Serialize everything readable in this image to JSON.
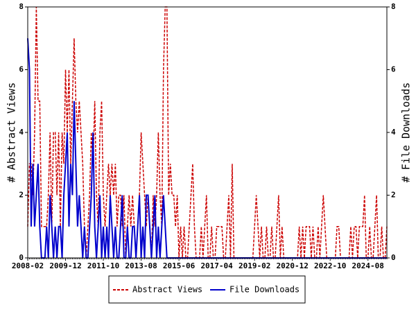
{
  "chart_data": {
    "type": "line",
    "y_label": "# Abstract Views",
    "y2_label": "# File Downloads",
    "categories": [
      "2008-02",
      null,
      null,
      null,
      null,
      null,
      null,
      null,
      null,
      null,
      null,
      null,
      null,
      null,
      null,
      null,
      null,
      null,
      null,
      null,
      null,
      null,
      "2009-12",
      null,
      null,
      null,
      null,
      null,
      null,
      null,
      null,
      null,
      null,
      null,
      null,
      null,
      null,
      null,
      null,
      null,
      null,
      null,
      null,
      null,
      "2011-10",
      null,
      null,
      null,
      null,
      null,
      null,
      null,
      null,
      null,
      null,
      null,
      null,
      null,
      null,
      null,
      null,
      null,
      null,
      null,
      null,
      null,
      "2013-08",
      null,
      null,
      null,
      null,
      null,
      null,
      null,
      null,
      null,
      null,
      null,
      null,
      null,
      null,
      null,
      null,
      null,
      null,
      null,
      null,
      null,
      "2015-06",
      null,
      null,
      null,
      null,
      null,
      null,
      null,
      null,
      null,
      null,
      null,
      null,
      null,
      null,
      null,
      null,
      null,
      null,
      null,
      null,
      null,
      "2017-04",
      null,
      null,
      null,
      null,
      null,
      null,
      null,
      null,
      null,
      null,
      null,
      null,
      null,
      null,
      null,
      null,
      null,
      null,
      null,
      null,
      null,
      "2019-02",
      null,
      null,
      null,
      null,
      null,
      null,
      null,
      null,
      null,
      null,
      null,
      null,
      null,
      null,
      null,
      null,
      null,
      null,
      null,
      null,
      null,
      "2020-12",
      null,
      null,
      null,
      null,
      null,
      null,
      null,
      null,
      null,
      null,
      null,
      null,
      null,
      null,
      null,
      null,
      null,
      null,
      null,
      null,
      null,
      "2022-10",
      null,
      null,
      null,
      null,
      null,
      null,
      null,
      null,
      null,
      null,
      null,
      null,
      null,
      null,
      null,
      null,
      null,
      null,
      null,
      null,
      null,
      "2024-08",
      null,
      null,
      null,
      null,
      null,
      null,
      null,
      null,
      null,
      null,
      null
    ],
    "series": [
      {
        "name": "Abstract Views",
        "color": "#cc0000",
        "axis": "y",
        "dash": true,
        "values": [
          1,
          3,
          3,
          2,
          4,
          8,
          5,
          5,
          1,
          1,
          1,
          1,
          2,
          4,
          1,
          4,
          4,
          2,
          4,
          1,
          4,
          3,
          6,
          4,
          6,
          3,
          5,
          7,
          5,
          4,
          5,
          4,
          3,
          1,
          0,
          1,
          2,
          4,
          3,
          5,
          2,
          1,
          4,
          5,
          2,
          1,
          2,
          3,
          2,
          3,
          2,
          3,
          1,
          2,
          2,
          1,
          2,
          0,
          1,
          2,
          1,
          2,
          1,
          0,
          1,
          2,
          4,
          3,
          2,
          1,
          2,
          1,
          0,
          2,
          1,
          2,
          4,
          2,
          1,
          6,
          8,
          8,
          2,
          3,
          2,
          2,
          1,
          2,
          0,
          1,
          0,
          1,
          0,
          0,
          1,
          2,
          3,
          1,
          0,
          0,
          0,
          1,
          0,
          1,
          2,
          0,
          0,
          1,
          0,
          0,
          1,
          1,
          1,
          1,
          0,
          0,
          1,
          2,
          0,
          3,
          0,
          0,
          0,
          0,
          0,
          0,
          0,
          0,
          0,
          0,
          0,
          0,
          1,
          2,
          1,
          0,
          1,
          0,
          0,
          1,
          0,
          0,
          1,
          0,
          0,
          1,
          2,
          0,
          1,
          0,
          0,
          0,
          0,
          0,
          0,
          0,
          0,
          0,
          1,
          0,
          1,
          0,
          1,
          1,
          1,
          0,
          1,
          0,
          0,
          1,
          0,
          1,
          2,
          1,
          0,
          0,
          0,
          0,
          0,
          0,
          1,
          1,
          0,
          0,
          0,
          0,
          0,
          0,
          1,
          0,
          1,
          1,
          0,
          1,
          1,
          1,
          2,
          0,
          0,
          1,
          0,
          0,
          1,
          2,
          0,
          0,
          1,
          0,
          0,
          1
        ]
      },
      {
        "name": "File Downloads",
        "color": "#0000cc",
        "axis": "y2",
        "dash": false,
        "values": [
          7,
          6,
          1,
          3,
          1,
          2,
          3,
          1,
          0,
          0,
          0,
          1,
          0,
          2,
          1,
          0,
          1,
          0,
          1,
          1,
          0,
          2,
          3,
          4,
          1,
          3,
          2,
          5,
          3,
          1,
          2,
          1,
          0,
          1,
          0,
          0,
          1,
          2,
          4,
          1,
          0,
          1,
          2,
          0,
          1,
          0,
          1,
          0,
          2,
          1,
          0,
          1,
          0,
          0,
          1,
          2,
          0,
          0,
          1,
          0,
          0,
          1,
          1,
          0,
          1,
          2,
          0,
          1,
          0,
          2,
          2,
          1,
          0,
          1,
          2,
          0,
          1,
          0,
          1,
          2,
          1,
          0,
          0,
          0,
          0,
          0,
          0,
          0,
          0,
          0,
          0,
          0,
          0,
          0,
          0,
          0,
          0,
          0,
          0,
          0,
          0,
          0,
          0,
          0,
          0,
          0,
          0,
          0,
          0,
          0,
          0,
          0,
          0,
          0,
          0,
          0,
          0,
          0,
          0,
          0,
          0,
          0,
          0,
          0,
          0,
          0,
          0,
          0,
          0,
          0,
          0,
          0,
          0,
          0,
          0,
          0,
          0,
          0,
          0,
          0,
          0,
          0,
          0,
          0,
          0,
          0,
          0,
          0,
          0,
          0,
          0,
          0,
          0,
          0,
          0,
          0,
          0,
          0,
          0,
          0,
          0,
          0,
          0,
          0,
          0,
          0,
          0,
          0,
          0,
          0,
          0,
          0,
          0,
          0,
          0,
          0,
          0,
          0,
          0,
          0,
          0,
          0,
          0,
          0,
          0,
          0,
          0,
          0,
          0,
          0,
          0,
          0,
          0,
          0,
          0,
          0,
          0,
          0,
          0,
          0,
          0,
          0,
          0,
          0,
          0,
          0,
          0,
          0,
          0,
          0
        ]
      }
    ],
    "ylim": [
      0,
      8
    ],
    "yticks": [
      0,
      2,
      4,
      6,
      8
    ],
    "y2lim": [
      0,
      8
    ],
    "y2ticks": [
      0,
      2,
      4,
      6,
      8
    ],
    "legend": "bottom"
  }
}
